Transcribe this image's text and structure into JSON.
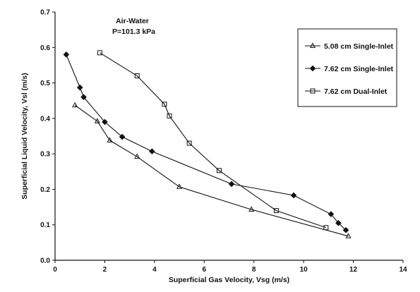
{
  "chart_data": {
    "type": "line",
    "title": "",
    "xlabel": "Superficial Gas Velocity, Vsg (m/s)",
    "ylabel": "Superficial Liquid Velocity, Vsl (m/s)",
    "xlim": [
      0,
      14
    ],
    "ylim": [
      0,
      0.7
    ],
    "x_ticks": [
      "0",
      "2",
      "4",
      "6",
      "8",
      "10",
      "12",
      "14"
    ],
    "y_ticks": [
      "0.0",
      "0.1",
      "0.2",
      "0.3",
      "0.4",
      "0.5",
      "0.6",
      "0.7"
    ],
    "grid": false,
    "legend_position": "top-right",
    "annotations": [
      "Air-Water",
      "P=101.3 kPa"
    ],
    "series": [
      {
        "name": "5.08 cm Single-Inlet",
        "marker": "triangle",
        "x": [
          0.8,
          1.7,
          2.2,
          3.3,
          5.0,
          7.9,
          11.8
        ],
        "y": [
          0.437,
          0.392,
          0.338,
          0.292,
          0.207,
          0.143,
          0.068
        ]
      },
      {
        "name": "7.62 cm Single-Inlet",
        "marker": "diamond",
        "x": [
          0.45,
          1.0,
          1.15,
          2.0,
          2.7,
          3.9,
          7.1,
          9.6,
          11.1,
          11.4,
          11.7
        ],
        "y": [
          0.58,
          0.487,
          0.46,
          0.39,
          0.348,
          0.307,
          0.215,
          0.183,
          0.13,
          0.105,
          0.085
        ]
      },
      {
        "name": "7.62 cm Dual-Inlet",
        "marker": "square",
        "x": [
          1.8,
          3.3,
          4.4,
          4.6,
          5.4,
          6.6,
          8.9,
          10.9
        ],
        "y": [
          0.585,
          0.52,
          0.44,
          0.407,
          0.33,
          0.253,
          0.14,
          0.092
        ]
      }
    ]
  }
}
